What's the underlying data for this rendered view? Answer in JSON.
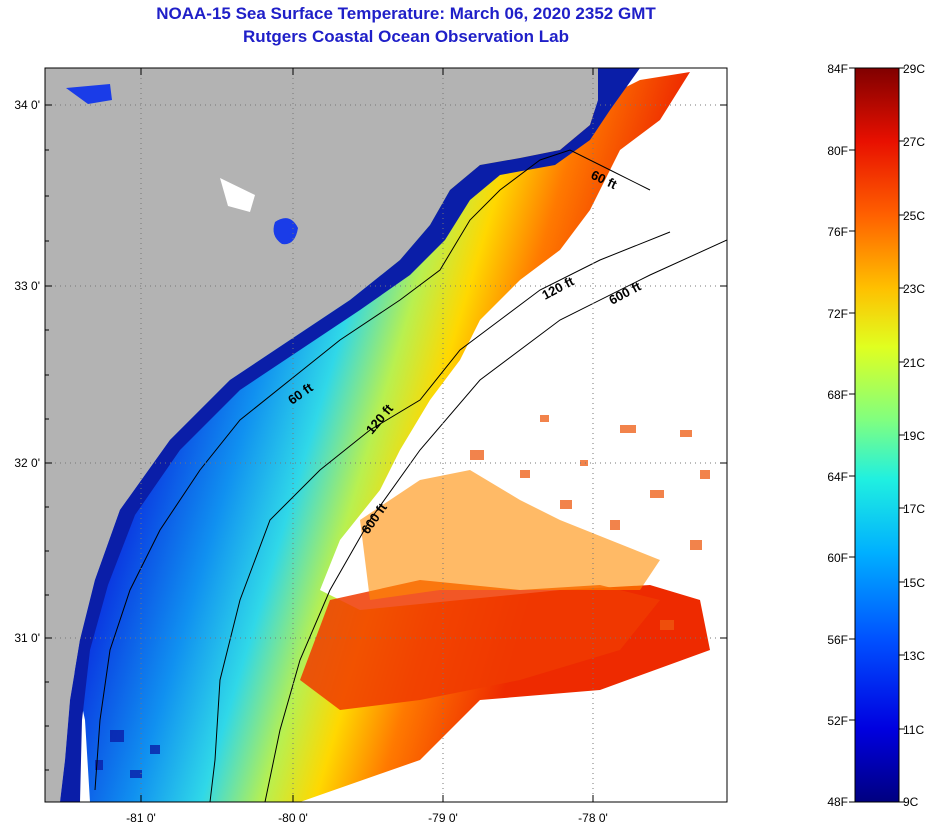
{
  "title": "NOAA-15 Sea Surface Temperature:  March 06, 2020 2352 GMT",
  "subtitle": "Rutgers Coastal Ocean Observation Lab",
  "map": {
    "lat_ticks": [
      "34 0'",
      "33 0'",
      "32 0'",
      "31 0'"
    ],
    "lon_ticks": [
      "-81 0'",
      "-80 0'",
      "-79 0'",
      "-78 0'"
    ],
    "isobath_labels": [
      "60 ft",
      "120 ft",
      "600 ft",
      "60 ft",
      "120 ft",
      "600 ft"
    ]
  },
  "colorbar": {
    "fahrenheit_labels": [
      "84F",
      "80F",
      "76F",
      "72F",
      "68F",
      "64F",
      "60F",
      "56F",
      "52F",
      "48F"
    ],
    "celsius_labels": [
      "29C",
      "27C",
      "25C",
      "23C",
      "21C",
      "19C",
      "17C",
      "15C",
      "13C",
      "11C",
      "9C"
    ]
  },
  "colors": {
    "title": "#1f1fc8",
    "land": "#b3b3b3",
    "no_data": "#ffffff"
  }
}
